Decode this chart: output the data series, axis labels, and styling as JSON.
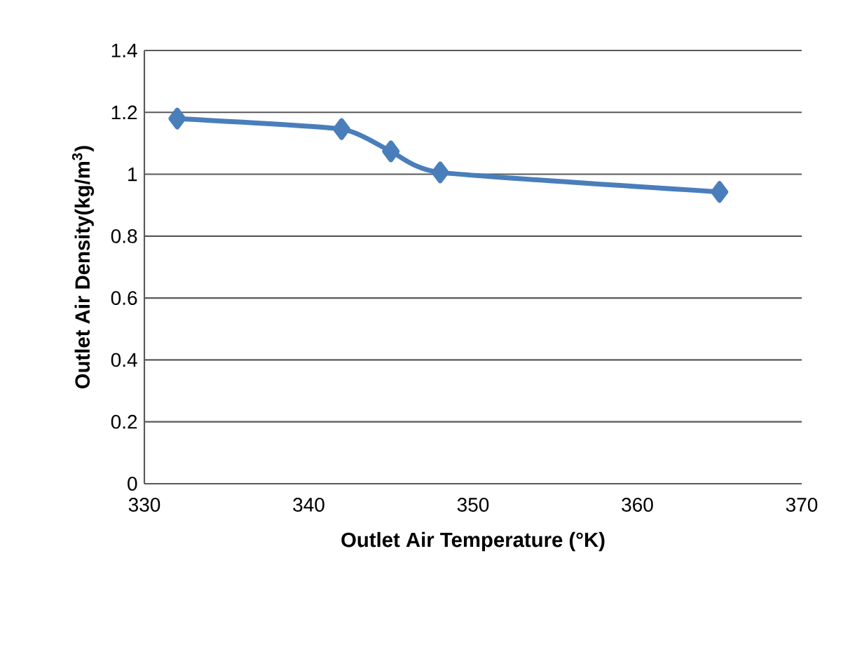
{
  "chart_data": {
    "type": "line",
    "xlabel": "Outlet Air Temperature (°K)",
    "ylabel": "Outlet Air Density(kg/m$^{3}$)",
    "x": [
      332,
      342,
      345,
      348,
      365
    ],
    "series": [
      {
        "color": "#4a7ebb",
        "values": [
          1.18,
          1.146,
          1.074,
          1.006,
          0.943
        ]
      }
    ],
    "xlim": [
      330,
      370
    ],
    "xticks": [
      330,
      340,
      350,
      360,
      370
    ],
    "ylim": [
      0,
      1.4
    ],
    "yticks": [
      0,
      0.2,
      0.4,
      0.6,
      0.8,
      1,
      1.2,
      1.4
    ],
    "grid": "y",
    "marker": "diamond",
    "line_style": "solid"
  }
}
